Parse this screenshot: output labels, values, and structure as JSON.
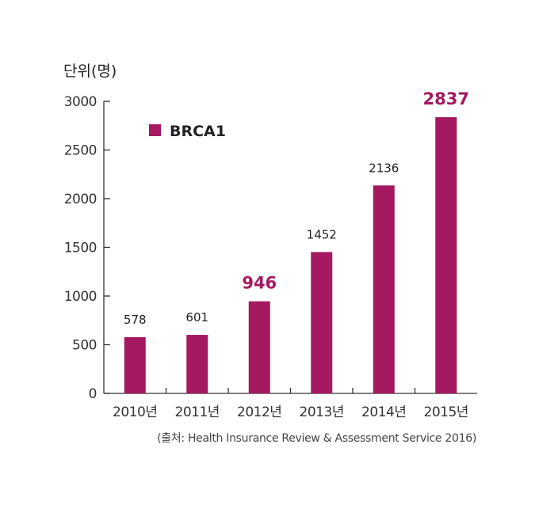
{
  "chart_data": {
    "type": "bar",
    "categories": [
      "2010년",
      "2011년",
      "2012년",
      "2013년",
      "2014년",
      "2015년"
    ],
    "series": [
      {
        "name": "BRCA1",
        "values": [
          578,
          601,
          946,
          1452,
          2136,
          2837
        ],
        "data_labels": [
          "578",
          "601",
          "946",
          "1452",
          "2136",
          "2837"
        ],
        "highlighted_labels": [
          "946",
          "2837"
        ]
      }
    ],
    "ylabel": "단위(명)",
    "ylim": [
      0,
      3000
    ],
    "yticks": [
      "0",
      "500",
      "1000",
      "1500",
      "2000",
      "2500",
      "3000"
    ],
    "grid": false,
    "legend": "top-left",
    "source": "(출처: Health Insurance Review & Assessment Service 2016)",
    "colors": {
      "bar": "#a4195f",
      "highlight_label": "#a4195f",
      "axis": "#333333"
    }
  }
}
